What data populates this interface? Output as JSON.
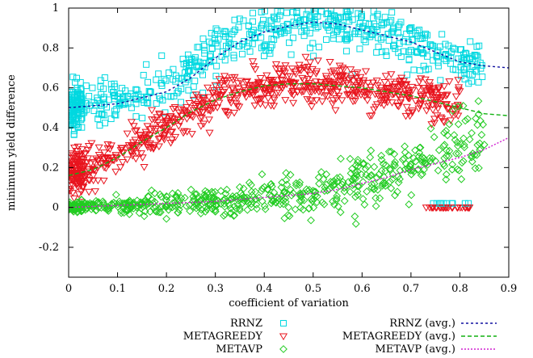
{
  "chart_data": {
    "type": "scatter",
    "title": "",
    "xlabel": "coefficient of variation",
    "ylabel": "minimum yield difference",
    "xlim": [
      0,
      0.9
    ],
    "ylim": [
      -0.35,
      1.0
    ],
    "x_ticks": [
      0,
      0.1,
      0.2,
      0.3,
      0.4,
      0.5,
      0.6,
      0.7,
      0.8,
      0.9
    ],
    "x_tick_labels": [
      "0",
      "0.1",
      "0.2",
      "0.3",
      "0.4",
      "0.5",
      "0.6",
      "0.7",
      "0.8",
      "0.9"
    ],
    "y_ticks": [
      -0.2,
      0,
      0.2,
      0.4,
      0.6,
      0.8,
      1
    ],
    "y_tick_labels": [
      "-0.2",
      "0",
      "0.2",
      "0.4",
      "0.6",
      "0.8",
      "1"
    ],
    "grid": false,
    "legend_position": "bottom-center",
    "series": [
      {
        "name": "RRNZ",
        "kind": "points",
        "marker": "square",
        "color": "#00D8E0",
        "trend": [
          [
            0,
            0.51
          ],
          [
            0.05,
            0.51
          ],
          [
            0.1,
            0.53
          ],
          [
            0.15,
            0.57
          ],
          [
            0.2,
            0.61
          ],
          [
            0.25,
            0.68
          ],
          [
            0.3,
            0.76
          ],
          [
            0.35,
            0.83
          ],
          [
            0.4,
            0.88
          ],
          [
            0.45,
            0.91
          ],
          [
            0.5,
            0.93
          ],
          [
            0.55,
            0.92
          ],
          [
            0.6,
            0.9
          ],
          [
            0.65,
            0.87
          ],
          [
            0.7,
            0.83
          ],
          [
            0.75,
            0.78
          ],
          [
            0.8,
            0.73
          ],
          [
            0.85,
            0.71
          ]
        ],
        "spread": 0.06
      },
      {
        "name": "METAGREEDY",
        "kind": "points",
        "marker": "triangle-down",
        "color": "#E8141E",
        "trend": [
          [
            0,
            0.17
          ],
          [
            0.05,
            0.2
          ],
          [
            0.1,
            0.26
          ],
          [
            0.15,
            0.33
          ],
          [
            0.2,
            0.4
          ],
          [
            0.25,
            0.48
          ],
          [
            0.3,
            0.54
          ],
          [
            0.35,
            0.58
          ],
          [
            0.4,
            0.61
          ],
          [
            0.45,
            0.62
          ],
          [
            0.5,
            0.62
          ],
          [
            0.55,
            0.61
          ],
          [
            0.6,
            0.6
          ],
          [
            0.65,
            0.58
          ],
          [
            0.7,
            0.56
          ],
          [
            0.75,
            0.54
          ],
          [
            0.8,
            0.52
          ]
        ],
        "spread": 0.05
      },
      {
        "name": "METAVP",
        "kind": "points",
        "marker": "diamond",
        "color": "#22CC22",
        "trend": [
          [
            0,
            0.0
          ],
          [
            0.1,
            0.01
          ],
          [
            0.2,
            0.02
          ],
          [
            0.3,
            0.03
          ],
          [
            0.4,
            0.05
          ],
          [
            0.5,
            0.08
          ],
          [
            0.55,
            0.1
          ],
          [
            0.6,
            0.13
          ],
          [
            0.65,
            0.16
          ],
          [
            0.7,
            0.2
          ],
          [
            0.75,
            0.25
          ],
          [
            0.8,
            0.3
          ],
          [
            0.85,
            0.35
          ]
        ],
        "spread": 0.04
      },
      {
        "name": "RRNZ (avg.)",
        "kind": "line",
        "dash": "3,3",
        "color": "#1010A0",
        "x": [
          0,
          0.05,
          0.1,
          0.15,
          0.2,
          0.25,
          0.3,
          0.35,
          0.4,
          0.45,
          0.5,
          0.55,
          0.6,
          0.65,
          0.7,
          0.75,
          0.8,
          0.85,
          0.9
        ],
        "y": [
          0.5,
          0.51,
          0.52,
          0.55,
          0.58,
          0.65,
          0.75,
          0.83,
          0.88,
          0.91,
          0.93,
          0.92,
          0.89,
          0.86,
          0.83,
          0.78,
          0.73,
          0.71,
          0.7
        ]
      },
      {
        "name": "METAGREEDY (avg.)",
        "kind": "line",
        "dash": "5,3",
        "color": "#10B010",
        "x": [
          0,
          0.05,
          0.1,
          0.15,
          0.2,
          0.25,
          0.3,
          0.35,
          0.4,
          0.45,
          0.5,
          0.55,
          0.6,
          0.65,
          0.7,
          0.75,
          0.8,
          0.85,
          0.9
        ],
        "y": [
          0.16,
          0.19,
          0.25,
          0.33,
          0.4,
          0.48,
          0.54,
          0.58,
          0.61,
          0.62,
          0.62,
          0.61,
          0.6,
          0.58,
          0.56,
          0.53,
          0.5,
          0.47,
          0.46
        ]
      },
      {
        "name": "METAVP (avg.)",
        "kind": "line",
        "dash": "2,2",
        "color": "#D020D0",
        "x": [
          0,
          0.1,
          0.2,
          0.3,
          0.4,
          0.5,
          0.55,
          0.6,
          0.65,
          0.7,
          0.75,
          0.8,
          0.85,
          0.9
        ],
        "y": [
          0.0,
          0.01,
          0.02,
          0.03,
          0.05,
          0.07,
          0.09,
          0.12,
          0.15,
          0.19,
          0.22,
          0.25,
          0.29,
          0.35
        ]
      }
    ],
    "legend": {
      "left": [
        {
          "label": "RRNZ",
          "marker": "square",
          "color": "#00D8E0"
        },
        {
          "label": "METAGREEDY",
          "marker": "triangle-down",
          "color": "#E8141E"
        },
        {
          "label": "METAVP",
          "marker": "diamond",
          "color": "#22CC22"
        }
      ],
      "right": [
        {
          "label": "RRNZ (avg.)",
          "dash": "3,3",
          "color": "#1010A0"
        },
        {
          "label": "METAGREEDY (avg.)",
          "dash": "5,3",
          "color": "#10B010"
        },
        {
          "label": "METAVP (avg.)",
          "dash": "2,2",
          "color": "#D020D0"
        }
      ]
    }
  }
}
